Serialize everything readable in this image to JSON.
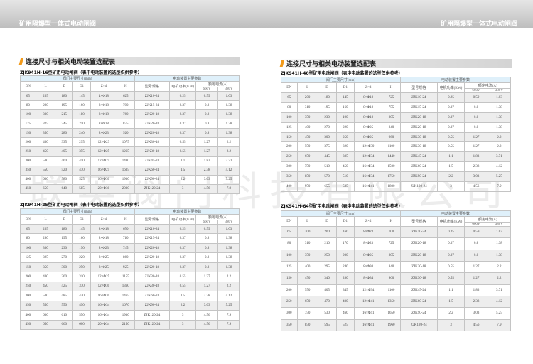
{
  "header": {
    "left": "矿用隔爆型一体式电动闸阀",
    "right": "矿用隔爆型一体式电动闸阀"
  },
  "watermark": "联英阀门科技有限公司",
  "section_title": "连接尺寸与相关电动装置选配表",
  "table_headers": {
    "group_valve": "阀门主要尺寸(mm)",
    "group_actuator": "电动装置主要参数",
    "cols": [
      "DN",
      "L",
      "D",
      "D1",
      "Z×d",
      "H",
      "型号规格",
      "电机功率(KW)",
      "额定电流(A)",
      "660V",
      "380V"
    ]
  },
  "tables": [
    {
      "subtitle": "ZJK941H-16型矿用电动闸阀（表中电动装置的选型仅供参考）",
      "rows": [
        [
          "65",
          "265",
          "180",
          "145",
          "4×Φ18",
          "625",
          "ZJK10-24",
          "0.25",
          "0.59",
          "1.03"
        ],
        [
          "80",
          "280",
          "195",
          "160",
          "8×Φ18",
          "700",
          "ZJK15-24",
          "0.37",
          "0.8",
          "1.38"
        ],
        [
          "100",
          "300",
          "215",
          "180",
          "8×Φ18",
          "760",
          "ZJK20-18",
          "0.37",
          "0.8",
          "1.38"
        ],
        [
          "125",
          "325",
          "245",
          "210",
          "8×Φ18",
          "825",
          "ZJK20-18",
          "0.37",
          "0.8",
          "1.38"
        ],
        [
          "150",
          "350",
          "280",
          "240",
          "8×Φ23",
          "920",
          "ZJK20-18",
          "0.37",
          "0.8",
          "1.38"
        ],
        [
          "200",
          "400",
          "335",
          "295",
          "12×Φ23",
          "1075",
          "ZJK30-18",
          "0.55",
          "1.27",
          "2.2"
        ],
        [
          "250",
          "450",
          "405",
          "355",
          "12×Φ25",
          "1265",
          "ZJK30-18",
          "0.55",
          "1.27",
          "2.2"
        ],
        [
          "300",
          "500",
          "460",
          "410",
          "12×Φ25",
          "1480",
          "ZJK45-24",
          "1.1",
          "1.83",
          "3.71"
        ],
        [
          "350",
          "550",
          "520",
          "470",
          "16×Φ25",
          "1605",
          "ZJK60-24",
          "1.5",
          "2.38",
          "4.12"
        ],
        [
          "400",
          "600",
          "580",
          "525",
          "16×Φ30",
          "1930",
          "ZJK90-24",
          "2.2",
          "3.03",
          "5.25"
        ],
        [
          "450",
          "650",
          "640",
          "585",
          "20×Φ30",
          "2000",
          "ZJK120-24",
          "3",
          "4.56",
          "7.9"
        ]
      ]
    },
    {
      "subtitle": "ZJK941H-25型矿用电动闸阀（表中电动装置的选型仅供参考）",
      "rows": [
        [
          "65",
          "265",
          "180",
          "145",
          "8×Φ18",
          "650",
          "ZJK10-24",
          "0.25",
          "0.59",
          "1.03"
        ],
        [
          "80",
          "280",
          "195",
          "160",
          "8×Φ18",
          "710",
          "ZJK15-24",
          "0.37",
          "0.8",
          "1.38"
        ],
        [
          "100",
          "300",
          "230",
          "190",
          "8×Φ23",
          "745",
          "ZJK20-18",
          "0.37",
          "0.8",
          "1.38"
        ],
        [
          "125",
          "325",
          "270",
          "220",
          "8×Φ25",
          "860",
          "ZJK20-18",
          "0.37",
          "0.8",
          "1.38"
        ],
        [
          "150",
          "350",
          "300",
          "250",
          "8×Φ25",
          "925",
          "ZJK20-18",
          "0.37",
          "0.8",
          "1.38"
        ],
        [
          "200",
          "400",
          "360",
          "310",
          "12×Φ25",
          "1155",
          "ZJK30-18",
          "0.55",
          "1.27",
          "2.2"
        ],
        [
          "250",
          "450",
          "425",
          "370",
          "12×Φ30",
          "1360",
          "ZJK30-18",
          "0.55",
          "1.27",
          "2.2"
        ],
        [
          "300",
          "500",
          "485",
          "430",
          "16×Φ30",
          "1465",
          "ZJK60-24",
          "1.5",
          "2.38",
          "4.12"
        ],
        [
          "350",
          "550",
          "550",
          "490",
          "16×Φ34",
          "1670",
          "ZJK90-24",
          "2.2",
          "3.03",
          "5.25"
        ],
        [
          "400",
          "600",
          "610",
          "550",
          "16×Φ34",
          "1930",
          "ZJK120-24",
          "3",
          "4.56",
          "7.9"
        ],
        [
          "450",
          "650",
          "660",
          "600",
          "20×Φ34",
          "2150",
          "ZJK120-24",
          "3",
          "4.56",
          "7.9"
        ]
      ]
    },
    {
      "subtitle": "ZJK941H-40型矿用电动闸阀（表中电动装置的选型仅供参考）",
      "rows": [
        [
          "65",
          "200",
          "180",
          "145",
          "8×Φ18",
          "725",
          "ZJK10-24",
          "0.25",
          "0.59",
          "1.03"
        ],
        [
          "80",
          "310",
          "195",
          "160",
          "8×Φ18",
          "755",
          "ZJK15-24",
          "0.37",
          "0.8",
          "1.38"
        ],
        [
          "100",
          "350",
          "230",
          "190",
          "8×Φ18",
          "805",
          "ZJK20-18",
          "0.37",
          "0.8",
          "1.38"
        ],
        [
          "125",
          "400",
          "270",
          "220",
          "8×Φ25",
          "840",
          "ZJK20-18",
          "0.37",
          "0.8",
          "1.38"
        ],
        [
          "150",
          "450",
          "300",
          "250",
          "8×Φ25",
          "960",
          "ZJK30-18",
          "0.55",
          "1.27",
          "2.2"
        ],
        [
          "200",
          "550",
          "375",
          "320",
          "12×Φ30",
          "1100",
          "ZJK30-18",
          "0.55",
          "1.27",
          "2.2"
        ],
        [
          "250",
          "650",
          "445",
          "385",
          "12×Φ34",
          "1440",
          "ZJK45-24",
          "1.1",
          "1.83",
          "3.71"
        ],
        [
          "300",
          "750",
          "510",
          "450",
          "16×Φ34",
          "1500",
          "ZJK60-24",
          "1.5",
          "2.38",
          "4.12"
        ],
        [
          "350",
          "850",
          "570",
          "510",
          "16×Φ34",
          "1750",
          "ZJK90-24",
          "2.2",
          "3.03",
          "5.25"
        ],
        [
          "400",
          "950",
          "655",
          "585",
          "16×Φ41",
          "1800",
          "ZJK120-24",
          "3",
          "4.56",
          "7.9"
        ]
      ]
    },
    {
      "subtitle": "ZJK941H-64型矿用电动闸阀（表中电动装置的选型仅供参考）",
      "rows": [
        [
          "65",
          "200",
          "200",
          "160",
          "8×Φ23",
          "700",
          "ZJK10-24",
          "0.25",
          "0.59",
          "1.03"
        ],
        [
          "80",
          "310",
          "210",
          "170",
          "8×Φ23",
          "725",
          "ZJK20-18",
          "0.37",
          "0.8",
          "1.38"
        ],
        [
          "100",
          "350",
          "250",
          "200",
          "8×Φ25",
          "805",
          "ZJK20-18",
          "0.37",
          "0.8",
          "1.38"
        ],
        [
          "125",
          "400",
          "295",
          "240",
          "8×Φ30",
          "840",
          "ZJK30-18",
          "0.55",
          "1.27",
          "2.2"
        ],
        [
          "150",
          "450",
          "340",
          "280",
          "8×Φ34",
          "960",
          "ZJK30-18",
          "0.55",
          "1.27",
          "2.2"
        ],
        [
          "200",
          "550",
          "405",
          "345",
          "12×Φ34",
          "1100",
          "ZJK45-24",
          "1.1",
          "1.83",
          "3.71"
        ],
        [
          "250",
          "650",
          "470",
          "400",
          "12×Φ41",
          "1350",
          "ZJK60-24",
          "1.5",
          "2.38",
          "4.12"
        ],
        [
          "300",
          "750",
          "530",
          "460",
          "16×Φ41",
          "1650",
          "ZJK90-24",
          "2.2",
          "3.03",
          "5.25"
        ],
        [
          "350",
          "850",
          "595",
          "525",
          "16×Φ41",
          "1960",
          "ZJK120-24",
          "3",
          "4.56",
          "7.9"
        ]
      ]
    }
  ]
}
